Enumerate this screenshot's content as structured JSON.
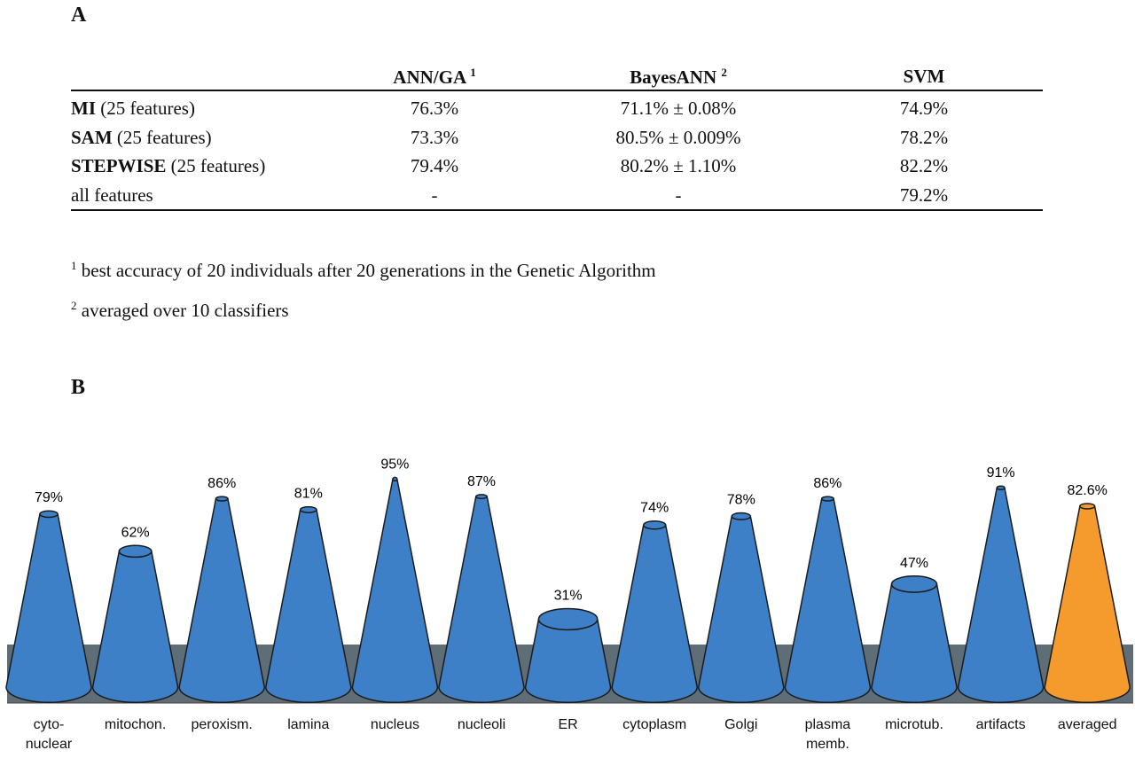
{
  "panel_a": {
    "label": "A",
    "table": {
      "header": [
        {
          "text": "ANN/GA",
          "sup": "1"
        },
        {
          "text": "BayesANN",
          "sup": "2"
        },
        {
          "text": "SVM"
        }
      ],
      "rows": [
        {
          "bold": "MI",
          "rest": "(25 features)",
          "cells": [
            "76.3%",
            "71.1% ± 0.08%",
            "74.9%"
          ]
        },
        {
          "bold": "SAM",
          "rest": "(25 features)",
          "cells": [
            "73.3%",
            "80.5% ± 0.009%",
            "78.2%"
          ]
        },
        {
          "bold": "STEPWISE",
          "rest": "(25 features)",
          "cells": [
            "79.4%",
            "80.2% ± 1.10%",
            "82.2%"
          ]
        },
        {
          "rest": "all features",
          "cells": [
            "-",
            "-",
            "79.2%"
          ]
        }
      ]
    },
    "footnotes": [
      {
        "mark": "1",
        "text": "best accuracy of 20 individuals after 20 generations in the Genetic Algorithm"
      },
      {
        "mark": "2",
        "text": "averaged over 10 classifiers"
      }
    ]
  },
  "chart_data": {
    "type": "cone",
    "panel_label": "B",
    "categories": [
      "cyto-\nnuclear",
      "mitochon.",
      "peroxism.",
      "lamina",
      "nucleus",
      "nucleoli",
      "ER",
      "cytoplasm",
      "Golgi",
      "plasma\nmemb.",
      "microtub.",
      "artifacts",
      "averaged"
    ],
    "values": [
      79,
      62,
      86,
      81,
      95,
      87,
      31,
      74,
      78,
      86,
      47,
      91,
      82.6
    ],
    "value_labels": [
      "79%",
      "62%",
      "86%",
      "81%",
      "95%",
      "87%",
      "31%",
      "74%",
      "78%",
      "86%",
      "47%",
      "91%",
      "82.6%"
    ],
    "colors": [
      "#3d80c8",
      "#3d80c8",
      "#3d80c8",
      "#3d80c8",
      "#3d80c8",
      "#3d80c8",
      "#3d80c8",
      "#3d80c8",
      "#3d80c8",
      "#3d80c8",
      "#3d80c8",
      "#3d80c8",
      "#f59a2c"
    ],
    "ylim": [
      0,
      100
    ]
  }
}
